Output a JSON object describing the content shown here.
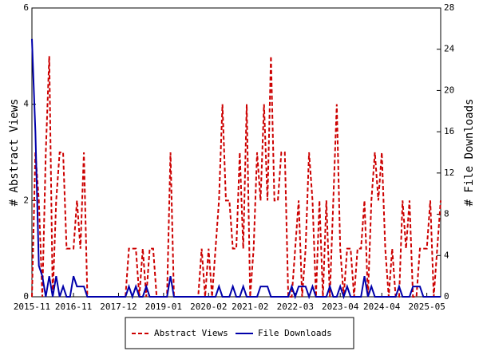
{
  "chart_data": {
    "type": "line",
    "x": [
      "2015-11",
      "2015-12",
      "2016-01",
      "2016-02",
      "2016-03",
      "2016-04",
      "2016-05",
      "2016-06",
      "2016-07",
      "2016-08",
      "2016-09",
      "2016-10",
      "2016-11",
      "2016-12",
      "2017-01",
      "2017-02",
      "2017-03",
      "2017-04",
      "2017-05",
      "2017-06",
      "2017-07",
      "2017-08",
      "2017-09",
      "2017-10",
      "2017-11",
      "2017-12",
      "2018-01",
      "2018-02",
      "2018-03",
      "2018-04",
      "2018-05",
      "2018-06",
      "2018-07",
      "2018-08",
      "2018-09",
      "2018-10",
      "2018-11",
      "2018-12",
      "2019-01",
      "2019-02",
      "2019-03",
      "2019-04",
      "2019-05",
      "2019-06",
      "2019-07",
      "2019-08",
      "2019-09",
      "2019-10",
      "2019-11",
      "2019-12",
      "2020-01",
      "2020-02",
      "2020-03",
      "2020-04",
      "2020-05",
      "2020-06",
      "2020-07",
      "2020-08",
      "2020-09",
      "2020-10",
      "2020-11",
      "2020-12",
      "2021-01",
      "2021-02",
      "2021-03",
      "2021-04",
      "2021-05",
      "2021-06",
      "2021-07",
      "2021-08",
      "2021-09",
      "2021-10",
      "2021-11",
      "2021-12",
      "2022-01",
      "2022-02",
      "2022-03",
      "2022-04",
      "2022-05",
      "2022-06",
      "2022-07",
      "2022-08",
      "2022-09",
      "2022-10",
      "2022-11",
      "2022-12",
      "2023-01",
      "2023-02",
      "2023-03",
      "2023-04",
      "2023-05",
      "2023-06",
      "2023-07",
      "2023-08",
      "2023-09",
      "2023-10",
      "2023-11",
      "2023-12",
      "2024-01",
      "2024-02",
      "2024-03",
      "2024-04",
      "2024-05",
      "2024-06",
      "2024-07",
      "2024-08",
      "2024-09",
      "2024-10",
      "2024-11",
      "2024-12",
      "2025-01",
      "2025-02",
      "2025-03",
      "2025-04",
      "2025-05",
      "2025-06",
      "2025-07",
      "2025-08",
      "2025-09"
    ],
    "xticks": [
      "2015-11",
      "2016-11",
      "2017-12",
      "2019-01",
      "2020-02",
      "2021-02",
      "2022-03",
      "2023-04",
      "2024-04",
      "2025-05"
    ],
    "ylabel": "# Abstract Views",
    "y2label": "# File Downloads",
    "ylim": [
      0,
      6
    ],
    "yticks": [
      0,
      2,
      4,
      6
    ],
    "y2lim": [
      0,
      28
    ],
    "y2ticks": [
      0,
      4,
      8,
      12,
      16,
      20,
      24,
      28
    ],
    "series": [
      {
        "name": "Abstract Views",
        "color": "#cc0000",
        "dashed": true,
        "values": [
          0,
          3,
          2,
          0,
          3,
          5,
          0,
          2,
          3,
          3,
          1,
          1,
          1,
          2,
          1,
          3,
          0,
          0,
          0,
          0,
          0,
          0,
          0,
          0,
          0,
          0,
          0,
          0,
          1,
          1,
          1,
          0,
          1,
          0,
          1,
          1,
          0,
          0,
          0,
          0,
          3,
          0,
          0,
          0,
          0,
          0,
          0,
          0,
          0,
          1,
          0,
          1,
          0,
          1,
          2,
          4,
          2,
          2,
          1,
          1,
          3,
          1,
          4,
          0,
          1,
          3,
          2,
          4,
          2,
          5,
          2,
          2,
          3,
          3,
          0,
          0,
          1,
          2,
          0,
          1,
          3,
          2,
          0,
          2,
          0,
          2,
          0,
          2,
          4,
          1,
          0,
          1,
          1,
          0,
          1,
          1,
          2,
          0,
          2,
          3,
          2,
          3,
          1,
          0,
          1,
          0,
          0,
          2,
          1,
          2,
          0,
          0,
          1,
          1,
          1,
          2,
          0,
          1,
          2
        ]
      },
      {
        "name": "File Downloads",
        "color": "#0000aa",
        "axis": "y2",
        "dashed": false,
        "values": [
          25,
          16,
          3,
          2,
          0,
          2,
          0,
          2,
          0,
          1,
          0,
          0,
          2,
          1,
          1,
          1,
          0,
          0,
          0,
          0,
          0,
          0,
          0,
          0,
          0,
          0,
          0,
          0,
          1,
          0,
          1,
          0,
          0,
          1,
          0,
          0,
          0,
          0,
          0,
          0,
          2,
          0,
          0,
          0,
          0,
          0,
          0,
          0,
          0,
          0,
          0,
          0,
          0,
          0,
          1,
          0,
          0,
          0,
          1,
          0,
          0,
          1,
          0,
          0,
          0,
          0,
          1,
          1,
          1,
          0,
          0,
          0,
          0,
          0,
          0,
          1,
          0,
          1,
          1,
          1,
          0,
          1,
          0,
          0,
          0,
          0,
          1,
          0,
          0,
          1,
          0,
          1,
          0,
          0,
          0,
          0,
          2,
          0,
          1,
          0,
          0,
          0,
          0,
          0,
          0,
          0,
          1,
          0,
          0,
          0,
          1,
          1,
          1,
          0,
          0,
          0,
          0,
          0,
          0
        ]
      }
    ]
  }
}
